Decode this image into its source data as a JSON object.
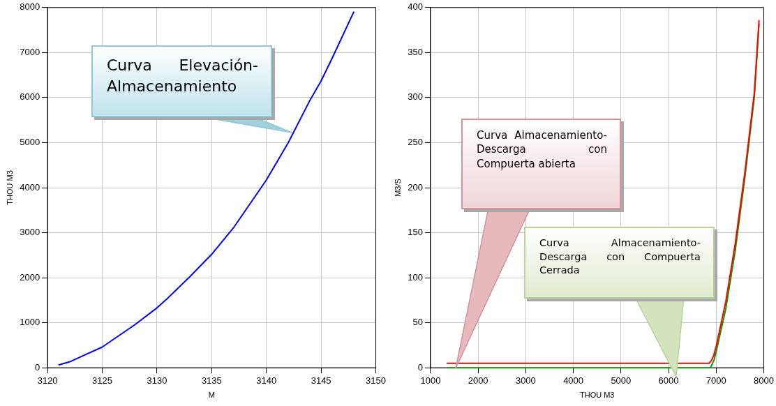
{
  "chart_data": [
    {
      "type": "line",
      "xlabel": "M",
      "ylabel": "THOU M3",
      "xlim": [
        3120,
        3150
      ],
      "xticks": [
        3120,
        3125,
        3130,
        3135,
        3140,
        3145,
        3150
      ],
      "ylim": [
        0,
        8000
      ],
      "yticks": [
        0,
        1000,
        2000,
        3000,
        4000,
        5000,
        6000,
        7000,
        8000
      ],
      "grid": true,
      "legend": false,
      "marker": "none",
      "series": [
        {
          "color": "#0000ff",
          "x": [
            3121,
            3122,
            3125,
            3128,
            3130,
            3131,
            3133,
            3135,
            3137,
            3140,
            3142,
            3144,
            3145,
            3146,
            3148
          ],
          "values": [
            60,
            130,
            460,
            960,
            1330,
            1550,
            2020,
            2520,
            3110,
            4170,
            5000,
            5950,
            6370,
            6870,
            7910
          ]
        }
      ],
      "annotations": [
        "Curva Elevación-Almacenamiento"
      ]
    },
    {
      "type": "line",
      "xlabel": "THOU M3",
      "ylabel": "M3/S",
      "xlim": [
        1000,
        8000
      ],
      "xticks": [
        1000,
        2000,
        3000,
        4000,
        5000,
        6000,
        7000,
        8000
      ],
      "ylim": [
        0,
        400
      ],
      "yticks": [
        0,
        50,
        100,
        150,
        200,
        250,
        300,
        350,
        400
      ],
      "grid": true,
      "legend": false,
      "marker": "none",
      "series": [
        {
          "color": "#ff0000",
          "x": [
            1340,
            6850,
            6900,
            6950,
            7000,
            7200,
            7400,
            7600,
            7800,
            7900
          ],
          "values": [
            5,
            5,
            8,
            14,
            24,
            73,
            138,
            216,
            305,
            386
          ]
        },
        {
          "color": "#00a000",
          "x": [
            1340,
            6880,
            6950,
            7000,
            7200,
            7400,
            7600,
            7800,
            7900
          ],
          "values": [
            0,
            0,
            8,
            18,
            65,
            130,
            210,
            300,
            382
          ]
        }
      ],
      "annotations": [
        "Curva Almacenamiento-Descarga con Compuerta abierta",
        "Curva Almacenamiento-Descarga con Compuerta Cerrada"
      ]
    }
  ]
}
